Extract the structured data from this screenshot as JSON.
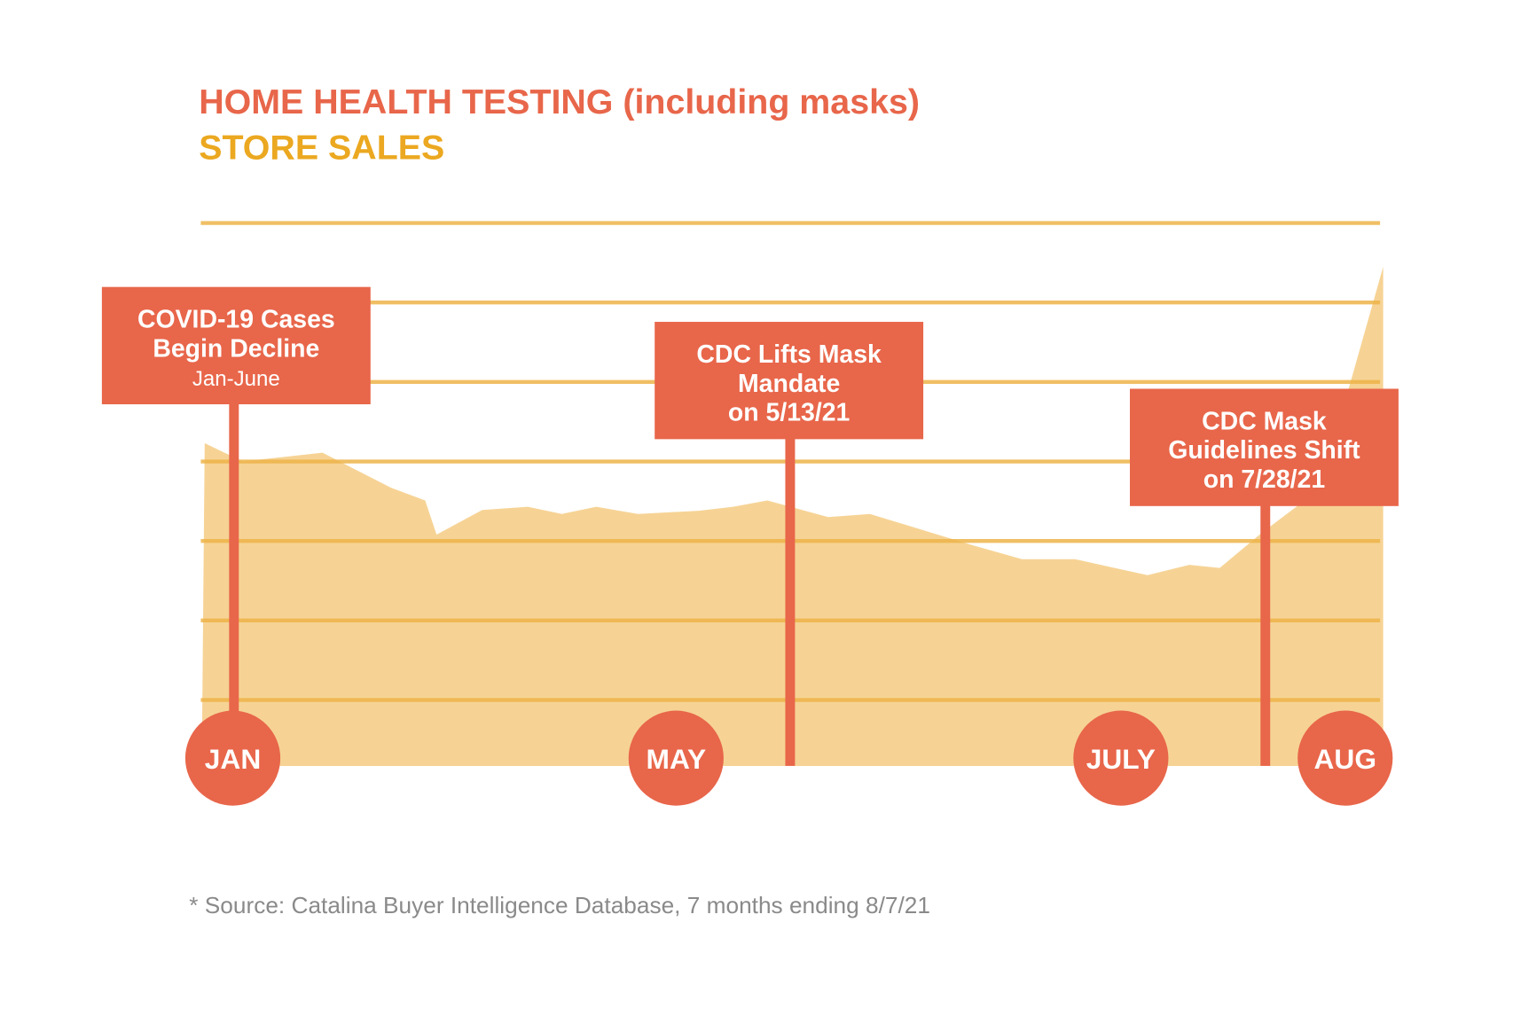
{
  "chart_data": {
    "type": "area",
    "title": "HOME HEALTH TESTING (including masks)",
    "subtitle": "STORE SALES",
    "xlabel": "",
    "ylabel": "",
    "x_unit": "weeks since start of January 2021",
    "y_unit": "relative sales index (gridline units, no labels shown)",
    "ylim": [
      -0.83,
      6
    ],
    "grid": true,
    "gridlines": [
      0,
      1,
      2,
      3,
      4,
      5,
      6
    ],
    "series": [
      {
        "name": "Store sales",
        "points": [
          [
            0,
            3.23
          ],
          [
            1.0,
            3.0
          ],
          [
            3.1,
            3.11
          ],
          [
            4.9,
            2.67
          ],
          [
            5.8,
            2.51
          ],
          [
            6.1,
            2.08
          ],
          [
            7.3,
            2.39
          ],
          [
            8.5,
            2.43
          ],
          [
            9.4,
            2.34
          ],
          [
            10.3,
            2.43
          ],
          [
            11.4,
            2.34
          ],
          [
            13.0,
            2.38
          ],
          [
            13.9,
            2.43
          ],
          [
            14.8,
            2.51
          ],
          [
            16.4,
            2.3
          ],
          [
            17.5,
            2.34
          ],
          [
            20.1,
            1.96
          ],
          [
            21.5,
            1.77
          ],
          [
            22.9,
            1.77
          ],
          [
            24.8,
            1.57
          ],
          [
            25.9,
            1.7
          ],
          [
            26.7,
            1.66
          ],
          [
            27.8,
            2.1
          ],
          [
            28.8,
            2.46
          ],
          [
            30.1,
            3.93
          ],
          [
            31.0,
            5.45
          ]
        ]
      }
    ],
    "month_markers": [
      {
        "label": "JAN",
        "week": 0.74
      },
      {
        "label": "MAY",
        "week": 12.4
      },
      {
        "label": "JULY",
        "week": 24.1
      },
      {
        "label": "AUG",
        "week": 30.0
      }
    ],
    "annotations": [
      {
        "lines": [
          "COVID-19 Cases",
          "Begin Decline"
        ],
        "sub": "Jan-June",
        "week": 0.77
      },
      {
        "lines": [
          "CDC Lifts Mask",
          "Mandate",
          "on 5/13/21"
        ],
        "sub": "",
        "week": 15.4
      },
      {
        "lines": [
          "CDC Mask",
          "Guidelines Shift",
          "on 7/28/21"
        ],
        "sub": "",
        "week": 27.9
      }
    ],
    "footnote": "* Source: Catalina Buyer Intelligence Database, 7 months ending 8/7/21"
  },
  "colors": {
    "accent": "#E8664A",
    "title2": "#EBA820",
    "area": "#F6D395",
    "grid": "#EEB449",
    "footnote": "#8A8A8A"
  }
}
